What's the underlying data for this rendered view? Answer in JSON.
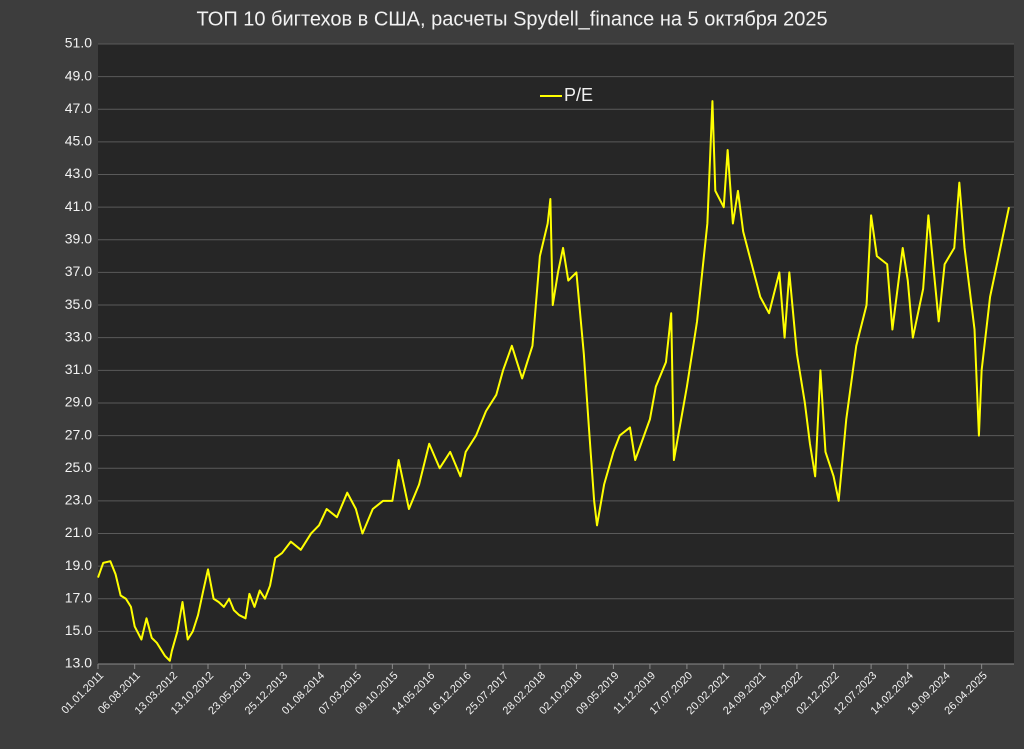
{
  "chart_data": {
    "type": "line",
    "title": "ТОП 10 бигтехов в США, расчеты Spydell_finance на 5 октября 2025",
    "x": [
      "01.01.2011",
      "01.02.2011",
      "15.03.2011",
      "15.04.2011",
      "15.05.2011",
      "15.06.2011",
      "15.07.2011",
      "06.08.2011",
      "15.09.2011",
      "15.10.2011",
      "15.11.2011",
      "15.12.2011",
      "01.02.2012",
      "01.03.2012",
      "13.03.2012",
      "15.04.2012",
      "15.05.2012",
      "15.06.2012",
      "15.07.2012",
      "15.08.2012",
      "15.09.2012",
      "13.10.2012",
      "15.11.2012",
      "15.12.2012",
      "15.01.2013",
      "15.02.2013",
      "15.03.2013",
      "15.04.2013",
      "23.05.2013",
      "15.06.2013",
      "15.07.2013",
      "15.08.2013",
      "15.09.2013",
      "15.10.2013",
      "15.11.2013",
      "25.12.2013",
      "15.02.2014",
      "15.04.2014",
      "15.06.2014",
      "01.08.2014",
      "15.09.2014",
      "15.11.2014",
      "15.01.2015",
      "07.03.2015",
      "15.04.2015",
      "15.06.2015",
      "15.08.2015",
      "09.10.2015",
      "15.11.2015",
      "15.01.2016",
      "15.03.2016",
      "14.05.2016",
      "15.07.2016",
      "15.09.2016",
      "15.11.2016",
      "16.12.2016",
      "15.02.2017",
      "15.04.2017",
      "15.06.2017",
      "25.07.2017",
      "15.09.2017",
      "15.11.2017",
      "15.12.2017",
      "15.01.2018",
      "28.02.2018",
      "15.04.2018",
      "01.05.2018",
      "15.05.2018",
      "15.06.2018",
      "15.07.2018",
      "15.08.2018",
      "02.10.2018",
      "15.11.2018",
      "15.12.2018",
      "15.01.2019",
      "01.02.2019",
      "15.03.2019",
      "09.05.2019",
      "15.06.2019",
      "15.08.2019",
      "15.09.2019",
      "11.12.2019",
      "15.01.2020",
      "15.03.2020",
      "15.04.2020",
      "01.05.2020",
      "17.07.2020",
      "15.09.2020",
      "15.11.2020",
      "15.12.2020",
      "01.01.2021",
      "20.02.2021",
      "15.03.2021",
      "15.04.2021",
      "15.05.2021",
      "15.06.2021",
      "24.09.2021",
      "15.11.2021",
      "15.01.2022",
      "15.02.2022",
      "15.03.2022",
      "29.04.2022",
      "15.06.2022",
      "15.07.2022",
      "15.08.2022",
      "15.09.2022",
      "15.10.2022",
      "02.12.2022",
      "01.01.2023",
      "15.02.2023",
      "15.04.2023",
      "15.06.2023",
      "12.07.2023",
      "15.08.2023",
      "15.10.2023",
      "15.11.2023",
      "15.01.2024",
      "14.02.2024",
      "15.03.2024",
      "15.05.2024",
      "15.06.2024",
      "15.08.2024",
      "19.09.2024",
      "15.11.2024",
      "15.12.2024",
      "15.01.2025",
      "15.03.2025",
      "10.04.2025",
      "26.04.2025",
      "15.06.2025",
      "15.08.2025",
      "05.10.2025"
    ],
    "series": [
      {
        "name": "P/E",
        "color": "#ffff00",
        "values": [
          18.3,
          19.2,
          19.3,
          18.5,
          17.2,
          17.0,
          16.5,
          15.3,
          14.5,
          15.8,
          14.6,
          14.3,
          13.5,
          13.2,
          13.8,
          15.0,
          16.8,
          14.5,
          15.0,
          16.0,
          17.5,
          18.8,
          17.0,
          16.8,
          16.5,
          17.0,
          16.3,
          16.0,
          15.8,
          17.3,
          16.5,
          17.5,
          17.0,
          17.8,
          19.5,
          19.8,
          20.5,
          20.0,
          21.0,
          21.5,
          22.5,
          22.0,
          23.5,
          22.5,
          21.0,
          22.5,
          23.0,
          23.0,
          25.5,
          22.5,
          24.0,
          26.5,
          25.0,
          26.0,
          24.5,
          26.0,
          27.0,
          28.5,
          29.5,
          31.0,
          32.5,
          30.5,
          31.5,
          32.5,
          38.0,
          40.0,
          41.5,
          35.0,
          37.0,
          38.5,
          36.5,
          37.0,
          32.0,
          27.5,
          23.0,
          21.5,
          24.0,
          26.0,
          27.0,
          27.5,
          25.5,
          28.0,
          30.0,
          31.5,
          34.5,
          25.5,
          30.0,
          34.0,
          40.0,
          47.5,
          42.0,
          41.0,
          44.5,
          40.0,
          42.0,
          39.5,
          35.5,
          34.5,
          37.0,
          33.0,
          37.0,
          32.0,
          29.0,
          26.5,
          24.5,
          31.0,
          26.0,
          24.5,
          23.0,
          28.0,
          32.5,
          35.0,
          40.5,
          38.0,
          37.5,
          33.5,
          38.5,
          36.5,
          33.0,
          36.0,
          40.5,
          34.0,
          37.5,
          38.5,
          42.5,
          38.5,
          33.5,
          27.0,
          31.0,
          35.5,
          38.5,
          41.0
        ]
      }
    ],
    "xlim": [
      "01.01.2011",
      "05.10.2025"
    ],
    "xticks": [
      "01.01.2011",
      "06.08.2011",
      "13.03.2012",
      "13.10.2012",
      "23.05.2013",
      "25.12.2013",
      "01.08.2014",
      "07.03.2015",
      "09.10.2015",
      "14.05.2016",
      "16.12.2016",
      "25.07.2017",
      "28.02.2018",
      "02.10.2018",
      "09.05.2019",
      "11.12.2019",
      "17.07.2020",
      "20.02.2021",
      "24.09.2021",
      "29.04.2022",
      "02.12.2022",
      "12.07.2023",
      "14.02.2024",
      "19.09.2024",
      "26.04.2025"
    ],
    "ylim": [
      13,
      51
    ],
    "yticks": [
      {
        "value": 13,
        "label": "13.0"
      },
      {
        "value": 15,
        "label": "15.0"
      },
      {
        "value": 17,
        "label": "17.0"
      },
      {
        "value": 19,
        "label": "19.0"
      },
      {
        "value": 21,
        "label": "21.0"
      },
      {
        "value": 23,
        "label": "23.0"
      },
      {
        "value": 25,
        "label": "25.0"
      },
      {
        "value": 27,
        "label": "27.0"
      },
      {
        "value": 29,
        "label": "29.0"
      },
      {
        "value": 31,
        "label": "31.0"
      },
      {
        "value": 33,
        "label": "33.0"
      },
      {
        "value": 35,
        "label": "35.0"
      },
      {
        "value": 37,
        "label": "37.0"
      },
      {
        "value": 39,
        "label": "39.0"
      },
      {
        "value": 41,
        "label": "41.0"
      },
      {
        "value": 43,
        "label": "43.0"
      },
      {
        "value": 45,
        "label": "45.0"
      },
      {
        "value": 47,
        "label": "47.0"
      },
      {
        "value": 49,
        "label": "49.0"
      },
      {
        "value": 51,
        "label": "51.0"
      }
    ],
    "grid": true,
    "legend": "top"
  }
}
